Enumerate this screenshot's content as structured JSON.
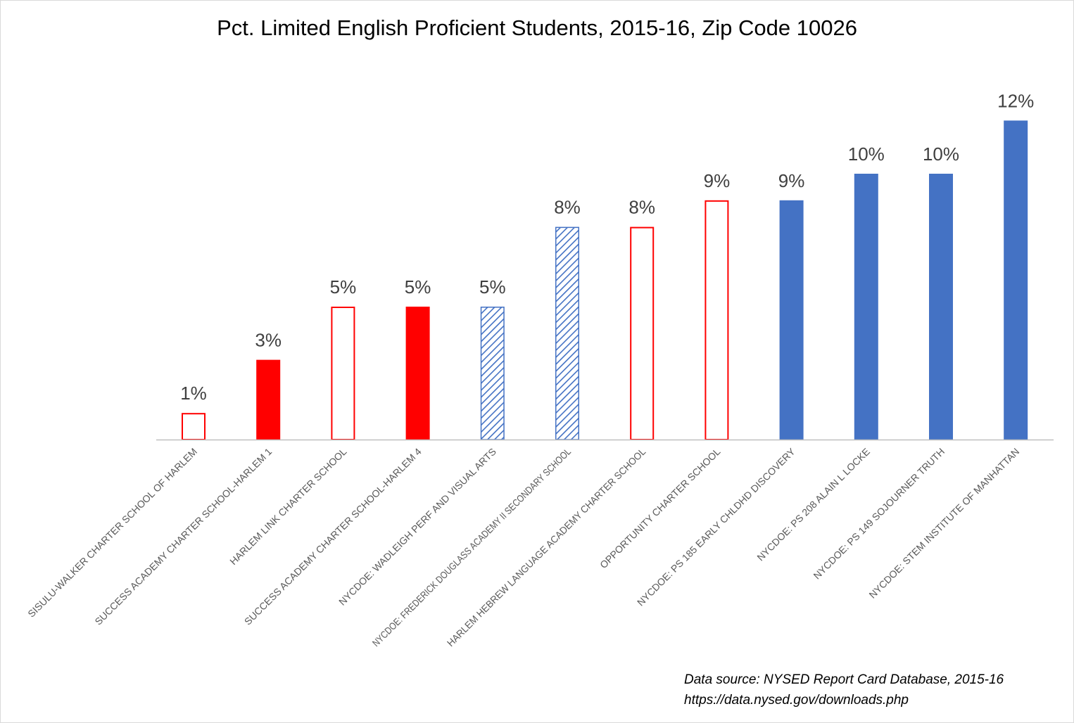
{
  "chart_data": {
    "type": "bar",
    "title": "Pct. Limited English Proficient Students, 2015-16, Zip Code 10026",
    "xlabel": "",
    "ylabel": "",
    "ylim": [
      0,
      13
    ],
    "grid": false,
    "legend": "none",
    "categories": [
      "SISULU-WALKER CHARTER SCHOOL OF HARLEM",
      "SUCCESS ACADEMY CHARTER SCHOOL-HARLEM 1",
      "HARLEM LINK CHARTER SCHOOL",
      "SUCCESS ACADEMY CHARTER SCHOOL-HARLEM 4",
      "NYCDOE: WADLEIGH PERF AND VISUAL ARTS",
      "NYCDOE: FREDERICK DOUGLASS ACADEMY II SECONDARY SCHOOL",
      "HARLEM HEBREW LANGUAGE ACADEMY CHARTER SCHOOL",
      "OPPORTUNITY CHARTER SCHOOL",
      "NYCDOE: PS 185 EARLY CHLDHD DISCOVERY",
      "NYCDOE: PS 208 ALAIN L LOCKE",
      "NYCDOE: PS 149 SOJOURNER TRUTH",
      "NYCDOE: STEM INSTITUTE OF MANHATTAN"
    ],
    "values": [
      1,
      3,
      5,
      5,
      5,
      8,
      8,
      9,
      9,
      10,
      10,
      12
    ],
    "data_labels": [
      "1%",
      "3%",
      "5%",
      "5%",
      "5%",
      "8%",
      "8%",
      "9%",
      "9%",
      "10%",
      "10%",
      "12%"
    ],
    "bar_styles": [
      "outline-red",
      "solid-red",
      "outline-red",
      "solid-red",
      "hatched-blue",
      "hatched-blue",
      "outline-red",
      "outline-red",
      "solid-blue",
      "solid-blue",
      "solid-blue",
      "solid-blue"
    ],
    "colors": {
      "red": "#ff0000",
      "blue": "#4472c4",
      "axis": "#bfbfbf"
    }
  },
  "source": {
    "line1": "Data source: NYSED Report Card Database, 2015-16",
    "line2": "https://data.nysed.gov/downloads.php"
  }
}
